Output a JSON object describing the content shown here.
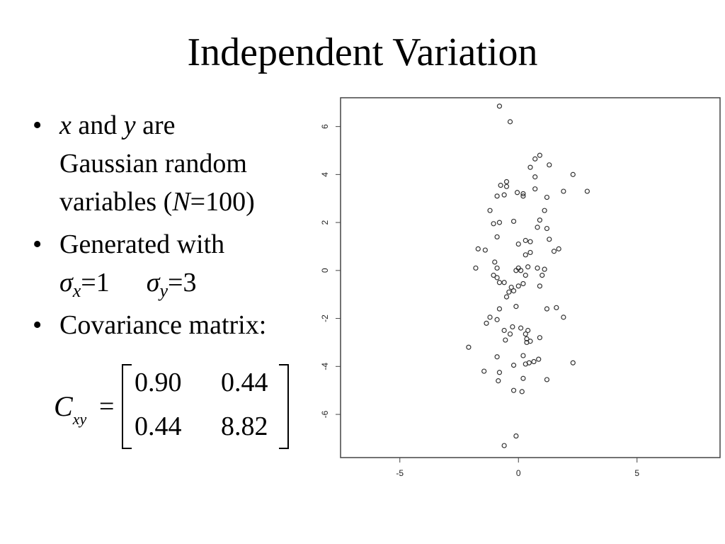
{
  "slide": {
    "title": "Independent Variation",
    "bullets": {
      "b1": {
        "x": "x",
        "and": " and ",
        "y": "y",
        "are": " are",
        "line2": "Gaussian random",
        "line3a": "variables  (",
        "n": "N",
        "line3b": "=100)"
      },
      "b2": {
        "line1": "Generated with",
        "sx_sym": "σ",
        "sx_sub": "x",
        "sx_val": "=1",
        "sy_sym": "σ",
        "sy_sub": "y",
        "sy_val": "=3"
      },
      "b3": {
        "text": "Covariance matrix:"
      }
    },
    "bullet_char": "•",
    "matrix": {
      "label": "C",
      "label_sub": "xy",
      "equals": "=",
      "rows": [
        [
          "0.90",
          "0.44"
        ],
        [
          "0.44",
          "8.82"
        ]
      ]
    }
  },
  "chart_data": {
    "type": "scatter",
    "xlim": [
      -7.5,
      8.5
    ],
    "ylim": [
      -7.8,
      7.2
    ],
    "xticks": [
      -5,
      0,
      5
    ],
    "yticks": [
      -6,
      -4,
      -2,
      0,
      2,
      4,
      6
    ],
    "grid": false,
    "marker": "open-circle",
    "points": [
      [
        -0.8,
        6.85
      ],
      [
        -0.35,
        6.2
      ],
      [
        0.9,
        4.8
      ],
      [
        0.7,
        4.65
      ],
      [
        1.3,
        4.4
      ],
      [
        0.5,
        4.3
      ],
      [
        2.3,
        4.0
      ],
      [
        0.7,
        3.9
      ],
      [
        -0.5,
        3.7
      ],
      [
        -0.75,
        3.55
      ],
      [
        -0.5,
        3.5
      ],
      [
        0.7,
        3.4
      ],
      [
        1.9,
        3.3
      ],
      [
        2.9,
        3.3
      ],
      [
        -0.05,
        3.25
      ],
      [
        0.2,
        3.2
      ],
      [
        -0.6,
        3.15
      ],
      [
        -0.9,
        3.1
      ],
      [
        0.2,
        3.1
      ],
      [
        1.2,
        3.05
      ],
      [
        1.1,
        2.5
      ],
      [
        -1.2,
        2.5
      ],
      [
        0.9,
        2.1
      ],
      [
        -0.2,
        2.05
      ],
      [
        -0.8,
        2.0
      ],
      [
        -1.05,
        1.95
      ],
      [
        1.2,
        1.75
      ],
      [
        0.8,
        1.8
      ],
      [
        -0.9,
        1.4
      ],
      [
        0.3,
        1.25
      ],
      [
        0.5,
        1.2
      ],
      [
        0.0,
        1.1
      ],
      [
        1.3,
        1.3
      ],
      [
        1.7,
        0.9
      ],
      [
        1.5,
        0.8
      ],
      [
        -1.7,
        0.9
      ],
      [
        -1.4,
        0.85
      ],
      [
        0.5,
        0.75
      ],
      [
        0.3,
        0.65
      ],
      [
        -1.0,
        0.35
      ],
      [
        -0.9,
        0.1
      ],
      [
        -1.8,
        0.1
      ],
      [
        0.0,
        0.1
      ],
      [
        -0.1,
        0.0
      ],
      [
        0.4,
        0.15
      ],
      [
        0.8,
        0.1
      ],
      [
        1.1,
        0.05
      ],
      [
        0.1,
        0.0
      ],
      [
        -0.9,
        -0.3
      ],
      [
        -1.05,
        -0.2
      ],
      [
        0.3,
        -0.2
      ],
      [
        1.0,
        -0.2
      ],
      [
        -0.6,
        -0.5
      ],
      [
        -0.8,
        -0.5
      ],
      [
        0.2,
        -0.55
      ],
      [
        0.0,
        -0.65
      ],
      [
        -0.3,
        -0.7
      ],
      [
        0.9,
        -0.65
      ],
      [
        -0.2,
        -0.85
      ],
      [
        -0.4,
        -0.9
      ],
      [
        -0.5,
        -1.1
      ],
      [
        1.2,
        -1.6
      ],
      [
        1.6,
        -1.55
      ],
      [
        -0.1,
        -1.5
      ],
      [
        -0.8,
        -1.6
      ],
      [
        1.9,
        -1.95
      ],
      [
        -1.2,
        -1.95
      ],
      [
        -1.35,
        -2.2
      ],
      [
        -0.9,
        -2.05
      ],
      [
        -0.25,
        -2.35
      ],
      [
        0.1,
        -2.4
      ],
      [
        0.4,
        -2.5
      ],
      [
        -0.6,
        -2.5
      ],
      [
        0.3,
        -2.65
      ],
      [
        -0.35,
        -2.65
      ],
      [
        0.9,
        -2.8
      ],
      [
        -0.55,
        -2.9
      ],
      [
        0.35,
        -2.85
      ],
      [
        0.5,
        -2.95
      ],
      [
        0.35,
        -3.0
      ],
      [
        -2.1,
        -3.2
      ],
      [
        0.2,
        -3.55
      ],
      [
        -0.9,
        -3.6
      ],
      [
        0.85,
        -3.7
      ],
      [
        0.65,
        -3.8
      ],
      [
        0.45,
        -3.85
      ],
      [
        2.3,
        -3.85
      ],
      [
        0.3,
        -3.9
      ],
      [
        -0.2,
        -3.95
      ],
      [
        -1.45,
        -4.2
      ],
      [
        -0.8,
        -4.25
      ],
      [
        1.2,
        -4.55
      ],
      [
        -0.85,
        -4.6
      ],
      [
        0.2,
        -4.5
      ],
      [
        -0.2,
        -5.0
      ],
      [
        0.15,
        -5.05
      ],
      [
        -0.1,
        -6.9
      ],
      [
        -0.6,
        -7.3
      ]
    ]
  }
}
